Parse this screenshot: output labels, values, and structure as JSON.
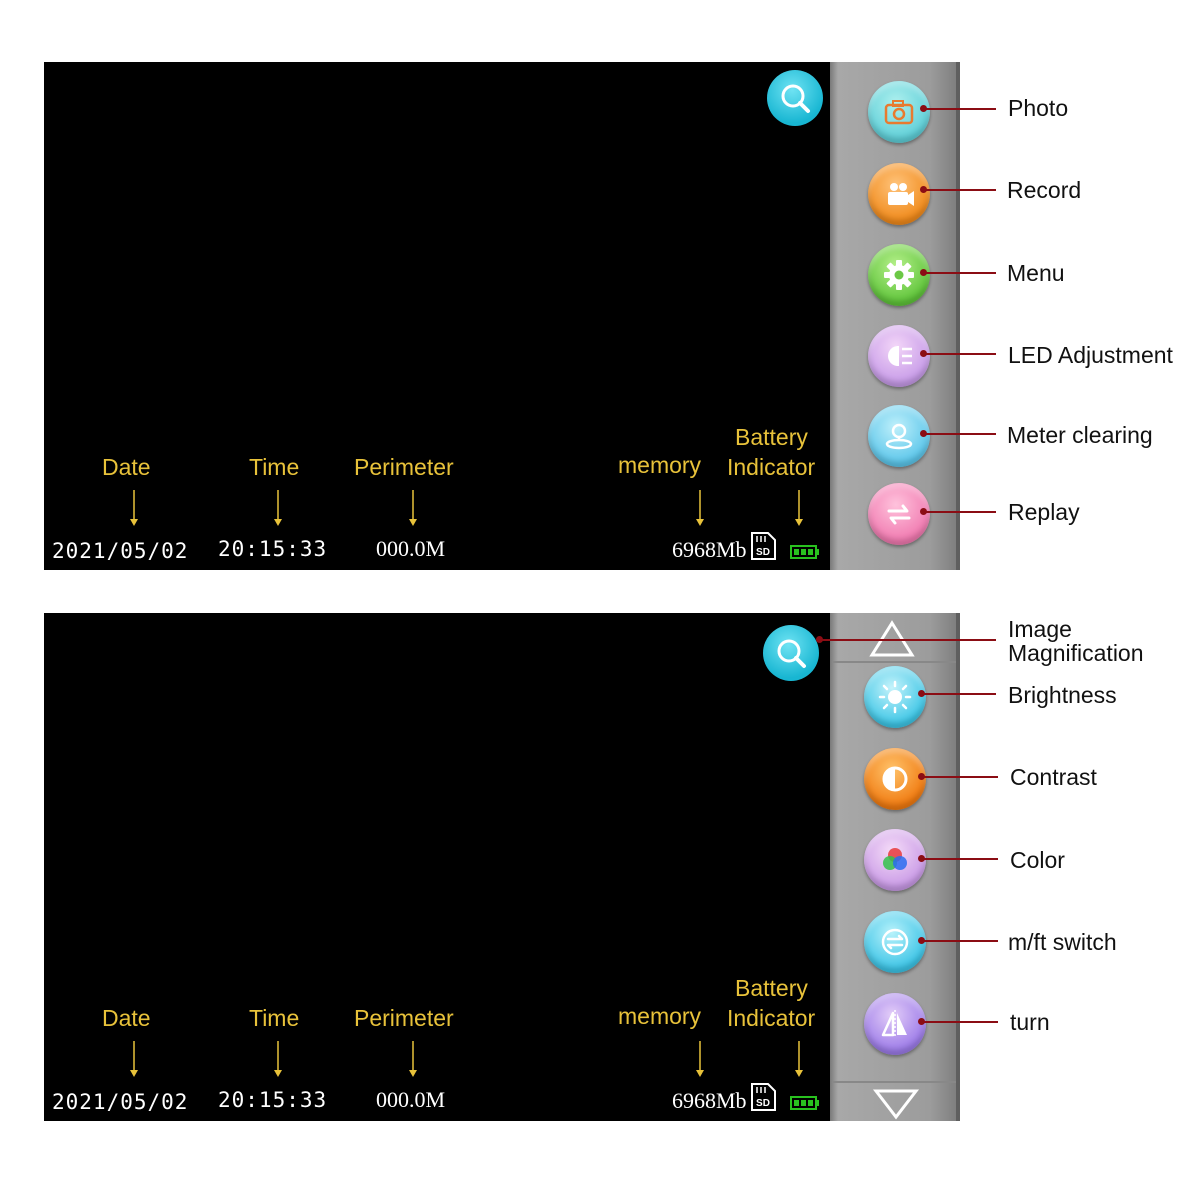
{
  "colors": {
    "screen": "#000000",
    "osd_label": "#e8c23a",
    "callout_line": "#8b0d14",
    "battery": "#29c21f"
  },
  "screens": [
    {
      "osd_labels": {
        "date": "Date",
        "time": "Time",
        "perimeter": "Perimeter",
        "memory": "memory",
        "battery_line1": "Battery",
        "battery_line2": "Indicator"
      },
      "status": {
        "date": "2021/05/02",
        "time": "20:15:33",
        "perimeter": "000.0M",
        "memory": "6968Mb",
        "sd_text": "SD"
      },
      "buttons": [
        {
          "icon": "camera-icon",
          "callout": "Photo"
        },
        {
          "icon": "video-camera-icon",
          "callout": "Record"
        },
        {
          "icon": "gear-icon",
          "callout": "Menu"
        },
        {
          "icon": "led-headlight-icon",
          "callout": "LED Adjustment"
        },
        {
          "icon": "meter-reset-icon",
          "callout": "Meter clearing"
        },
        {
          "icon": "replay-arrows-icon",
          "callout": "Replay"
        }
      ]
    },
    {
      "osd_labels": {
        "date": "Date",
        "time": "Time",
        "perimeter": "Perimeter",
        "memory": "memory",
        "battery_line1": "Battery",
        "battery_line2": "Indicator"
      },
      "status": {
        "date": "2021/05/02",
        "time": "20:15:33",
        "perimeter": "000.0M",
        "memory": "6968Mb",
        "sd_text": "SD"
      },
      "magnify_callout_line1": "Image",
      "magnify_callout_line2": "Magnification",
      "buttons": [
        {
          "icon": "brightness-sun-icon",
          "callout": "Brightness"
        },
        {
          "icon": "contrast-icon",
          "callout": "Contrast"
        },
        {
          "icon": "color-circles-icon",
          "callout": "Color"
        },
        {
          "icon": "unit-switch-icon",
          "callout": "m/ft switch"
        },
        {
          "icon": "flip-turn-icon",
          "callout": "turn"
        }
      ]
    }
  ]
}
